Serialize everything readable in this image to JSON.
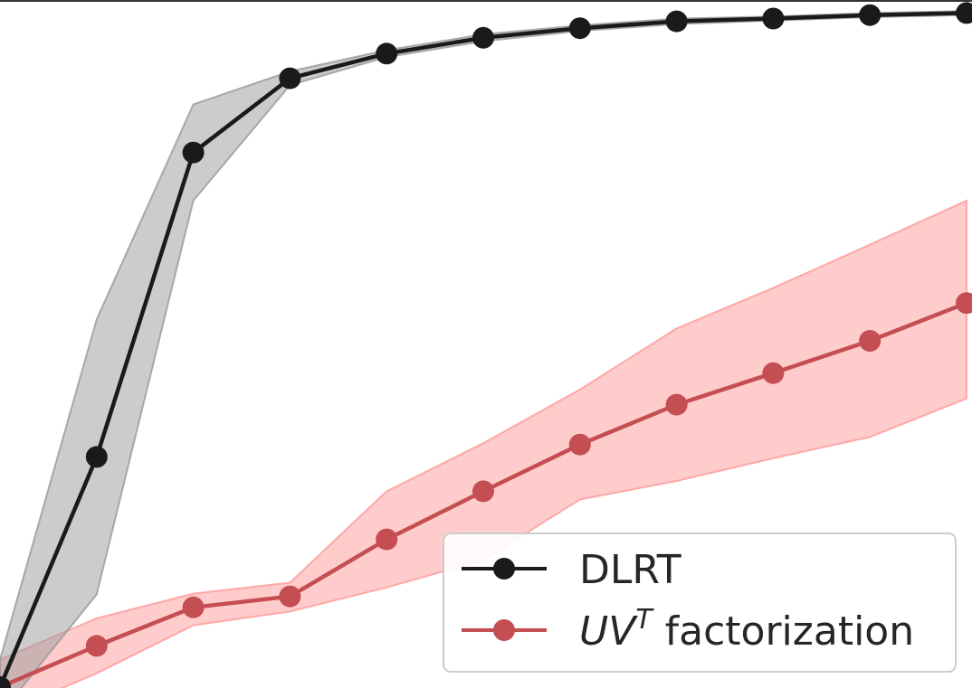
{
  "chart_data": {
    "type": "line",
    "title": "",
    "xlabel": "",
    "ylabel": "",
    "x": [
      0,
      1,
      2,
      3,
      4,
      5,
      6,
      7,
      8,
      9,
      10
    ],
    "xlim": [
      0,
      10
    ],
    "ylim": [
      0,
      1
    ],
    "grid": false,
    "legend_position": "bottom-right",
    "series": [
      {
        "name": "DLRT",
        "color": "#1a1a1a",
        "band_color": "#999999",
        "values": [
          0.0,
          0.335,
          0.778,
          0.886,
          0.922,
          0.945,
          0.959,
          0.969,
          0.973,
          0.978,
          0.981
        ],
        "lower": [
          -0.04,
          0.135,
          0.708,
          0.876,
          0.917,
          0.94,
          0.955,
          0.965,
          0.97,
          0.975,
          0.978
        ],
        "upper": [
          0.04,
          0.535,
          0.848,
          0.896,
          0.927,
          0.95,
          0.963,
          0.973,
          0.976,
          0.981,
          0.984
        ]
      },
      {
        "name_main": "UV",
        "name_sup": "T",
        "name_rest": " factorization",
        "color": "#c44e52",
        "band_color": "#ff9999",
        "values": [
          0.0,
          0.06,
          0.116,
          0.132,
          0.215,
          0.285,
          0.353,
          0.411,
          0.457,
          0.504,
          0.559
        ],
        "lower": [
          -0.04,
          0.02,
          0.09,
          0.11,
          0.145,
          0.185,
          0.273,
          0.3,
          0.333,
          0.364,
          0.42
        ],
        "upper": [
          0.04,
          0.1,
          0.136,
          0.152,
          0.285,
          0.355,
          0.433,
          0.522,
          0.581,
          0.644,
          0.708
        ]
      }
    ]
  }
}
